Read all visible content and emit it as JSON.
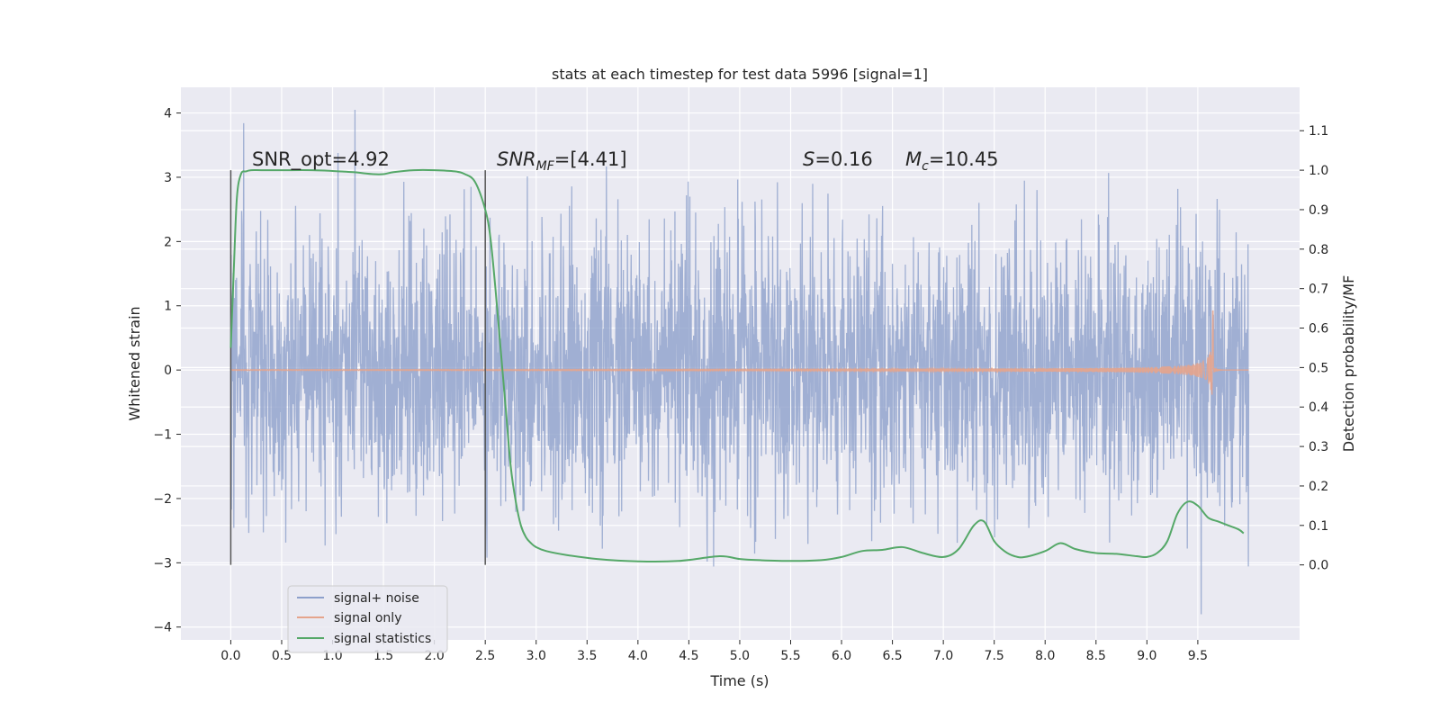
{
  "chart_data": {
    "type": "line",
    "title": "stats at each timestep for test data 5996 [signal=1]",
    "xlabel": "Time (s)",
    "ylabel": "Whitened strain",
    "y2label": "Detection probability/MF",
    "xlim": [
      -0.49,
      10.5
    ],
    "ylim": [
      -4.2,
      4.4
    ],
    "y2lim": [
      -0.19,
      1.21
    ],
    "x_ticks": [
      "0.0",
      "0.5",
      "1.0",
      "1.5",
      "2.0",
      "2.5",
      "3.0",
      "3.5",
      "4.0",
      "4.5",
      "5.0",
      "5.5",
      "6.0",
      "6.5",
      "7.0",
      "7.5",
      "8.0",
      "8.5",
      "9.0",
      "9.5"
    ],
    "y_ticks": [
      "−4",
      "−3",
      "−2",
      "−1",
      "0",
      "1",
      "2",
      "3",
      "4"
    ],
    "y2_ticks": [
      "0.0",
      "0.1",
      "0.2",
      "0.3",
      "0.4",
      "0.5",
      "0.6",
      "0.7",
      "0.8",
      "0.9",
      "1.0",
      "1.1"
    ],
    "grid": true,
    "vlines": [
      0.0,
      2.5
    ],
    "annotations": {
      "snr_opt": "SNR_opt=4.92",
      "snr_mf": "SNR",
      "snr_mf_sub": "MF",
      "snr_mf_val": "=[4.41]",
      "s_label": "S",
      "s_val": "=0.16",
      "mc_label": "M",
      "mc_sub": "c",
      "mc_val": "=10.45"
    },
    "legend": {
      "position": "lower-left",
      "entries": [
        "signal+ noise",
        "signal only",
        "signal statistics"
      ]
    },
    "series": [
      {
        "name": "signal+ noise",
        "color": "#8da0cb",
        "x_range": [
          0.0,
          10.0
        ],
        "typical_abs_amplitude": 1.3,
        "peak_max": 4.05,
        "peak_min": -3.8
      },
      {
        "name": "signal only",
        "color": "#e5a48c",
        "x_range": [
          0.0,
          10.0
        ],
        "peak_time": 9.65,
        "peak_amplitude": 0.95,
        "peak_min": -0.7
      },
      {
        "name": "signal statistics",
        "color": "#55a868",
        "axis": "right",
        "x": [
          0.0,
          0.03,
          0.06,
          0.1,
          0.15,
          0.2,
          0.3,
          0.5,
          0.8,
          1.0,
          1.2,
          1.4,
          1.5,
          1.6,
          1.8,
          2.0,
          2.2,
          2.3,
          2.4,
          2.5,
          2.55,
          2.6,
          2.65,
          2.7,
          2.75,
          2.8,
          2.85,
          2.9,
          2.95,
          3.0,
          3.1,
          3.3,
          3.6,
          4.0,
          4.4,
          4.8,
          5.0,
          5.2,
          5.5,
          5.8,
          6.0,
          6.2,
          6.4,
          6.6,
          6.8,
          7.0,
          7.15,
          7.3,
          7.4,
          7.5,
          7.6,
          7.7,
          7.8,
          8.0,
          8.15,
          8.3,
          8.5,
          8.7,
          8.9,
          9.0,
          9.1,
          9.2,
          9.3,
          9.4,
          9.5,
          9.6,
          9.7,
          9.8,
          9.9,
          9.95
        ],
        "y": [
          0.55,
          0.75,
          0.93,
          0.99,
          0.997,
          1.0,
          1.0,
          1.0,
          1.0,
          0.998,
          0.995,
          0.99,
          0.99,
          0.995,
          1.0,
          1.0,
          0.997,
          0.99,
          0.97,
          0.9,
          0.83,
          0.7,
          0.55,
          0.4,
          0.25,
          0.16,
          0.1,
          0.07,
          0.055,
          0.045,
          0.035,
          0.025,
          0.015,
          0.009,
          0.01,
          0.022,
          0.015,
          0.012,
          0.01,
          0.012,
          0.02,
          0.035,
          0.038,
          0.045,
          0.03,
          0.02,
          0.04,
          0.1,
          0.11,
          0.06,
          0.035,
          0.022,
          0.02,
          0.035,
          0.055,
          0.04,
          0.03,
          0.028,
          0.022,
          0.02,
          0.03,
          0.06,
          0.13,
          0.16,
          0.15,
          0.12,
          0.11,
          0.1,
          0.09,
          0.08
        ]
      }
    ]
  }
}
